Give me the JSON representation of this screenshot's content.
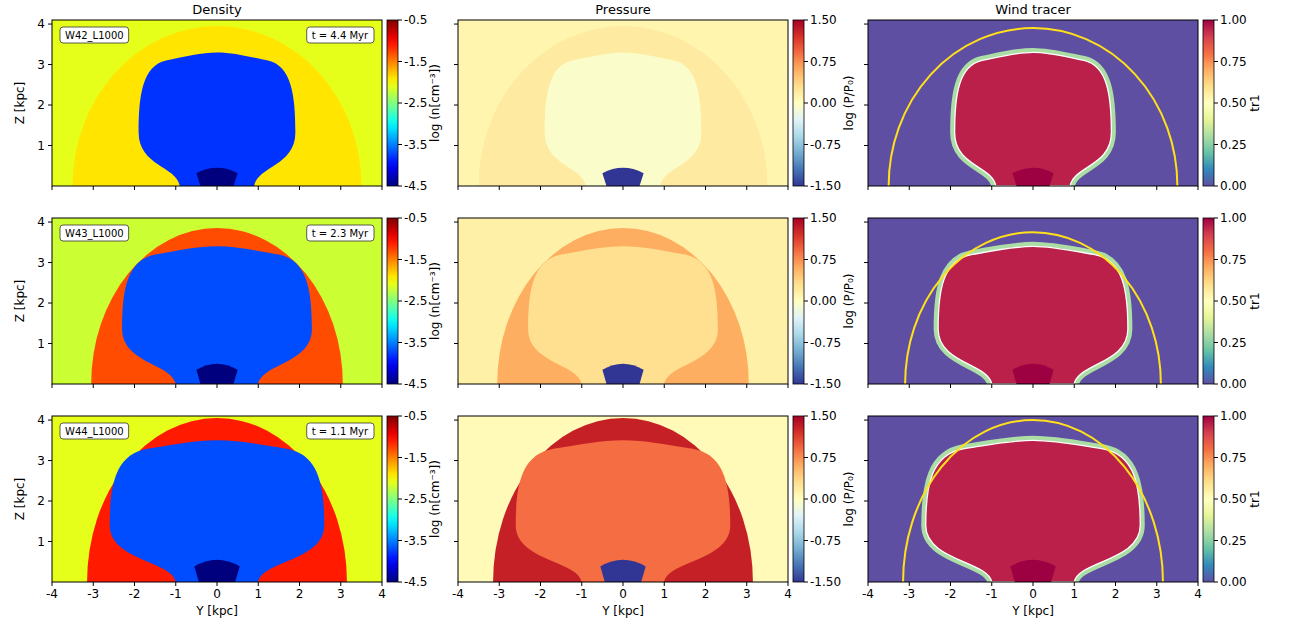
{
  "chart_data": [
    {
      "type": "heatmap",
      "title": "Density",
      "ylabel": "Z [kpc]",
      "run_label": "W42_L1000",
      "time_label": "t = 4.4 Myr",
      "xlim": [
        -4,
        4
      ],
      "ylim": [
        0,
        4.1
      ],
      "xticks": [
        -4,
        -3,
        -2,
        -1,
        0,
        1,
        2,
        3,
        4
      ],
      "yticks": [
        1,
        2,
        3,
        4
      ],
      "tick_labels": "y",
      "colorbar": {
        "label": "log (n[cm⁻³])",
        "range": [
          -4.5,
          -0.5
        ],
        "ticks": [
          -0.5,
          -1.5,
          -2.5,
          -3.5,
          -4.5
        ]
      },
      "background": -2.1,
      "shell": {
        "half_width": 3.5,
        "top": 3.95,
        "value": -1.9
      },
      "bubble": {
        "half_width": 1.9,
        "base_half_width": 0.9,
        "top": 3.3,
        "value": -3.8
      },
      "cavity": {
        "half_width": 0.5,
        "height": 0.45,
        "value": -4.5
      }
    },
    {
      "type": "heatmap",
      "title": "Pressure",
      "xlim": [
        -4,
        4
      ],
      "ylim": [
        0,
        4.1
      ],
      "xticks": [
        -4,
        -3,
        -2,
        -1,
        0,
        1,
        2,
        3,
        4
      ],
      "yticks": [
        1,
        2,
        3,
        4
      ],
      "tick_labels": false,
      "colorbar": {
        "label": "log (P/P₀)",
        "range": [
          -1.5,
          1.5
        ],
        "ticks": [
          {
            "value": 1.5,
            "label": "1.50"
          },
          {
            "value": 0.75,
            "label": "0.75"
          },
          {
            "value": 0,
            "label": "0.00"
          },
          {
            "value": -0.75,
            "label": "-0.75"
          },
          {
            "value": -1.5,
            "label": "-1.50"
          }
        ]
      },
      "background": 0.1,
      "shell": {
        "half_width": 3.5,
        "top": 3.95,
        "value": 0.2
      },
      "bubble": {
        "half_width": 1.9,
        "base_half_width": 0.9,
        "top": 3.3,
        "value": -0.05
      },
      "cavity": {
        "half_width": 0.5,
        "height": 0.45,
        "value": -1.5
      }
    },
    {
      "type": "heatmap",
      "title": "Wind tracer",
      "xlim": [
        -4,
        4
      ],
      "ylim": [
        0,
        4.1
      ],
      "xticks": [
        -4,
        -3,
        -2,
        -1,
        0,
        1,
        2,
        3,
        4
      ],
      "yticks": [
        1,
        2,
        3,
        4
      ],
      "tick_labels": false,
      "colorbar": {
        "label": "tr1",
        "range": [
          0,
          1
        ],
        "ticks": [
          {
            "value": 1,
            "label": "1.00"
          },
          {
            "value": 0.75,
            "label": "0.75"
          },
          {
            "value": 0.5,
            "label": "0.50"
          },
          {
            "value": 0.25,
            "label": "0.25"
          },
          {
            "value": 0,
            "label": "0.00"
          }
        ]
      },
      "background": 0,
      "bubble": {
        "half_width": 1.9,
        "base_half_width": 0.9,
        "top": 3.3,
        "value": 0.95,
        "edge_value": 0.3
      },
      "cavity": {
        "half_width": 0.5,
        "height": 0.45,
        "value": 1
      },
      "contour": {
        "half_width": 3.5,
        "top": 3.9
      }
    },
    {
      "type": "heatmap",
      "ylabel": "Z [kpc]",
      "run_label": "W43_L1000",
      "time_label": "t = 2.3 Myr",
      "xlim": [
        -4,
        4
      ],
      "ylim": [
        0,
        4.1
      ],
      "xticks": [
        -4,
        -3,
        -2,
        -1,
        0,
        1,
        2,
        3,
        4
      ],
      "yticks": [
        1,
        2,
        3,
        4
      ],
      "tick_labels": "y",
      "colorbar": {
        "label": "log (n[cm⁻³])",
        "range": [
          -4.5,
          -0.5
        ],
        "ticks": [
          -0.5,
          -1.5,
          -2.5,
          -3.5,
          -4.5
        ]
      },
      "background": -2.2,
      "shell": {
        "half_width": 3.05,
        "top": 3.85,
        "value": -1.3
      },
      "bubble": {
        "half_width": 2.3,
        "base_half_width": 1.0,
        "top": 3.4,
        "value": -3.7
      },
      "cavity": {
        "half_width": 0.5,
        "height": 0.5,
        "value": -4.5
      }
    },
    {
      "type": "heatmap",
      "xlim": [
        -4,
        4
      ],
      "ylim": [
        0,
        4.1
      ],
      "xticks": [
        -4,
        -3,
        -2,
        -1,
        0,
        1,
        2,
        3,
        4
      ],
      "yticks": [
        1,
        2,
        3,
        4
      ],
      "tick_labels": false,
      "colorbar": {
        "label": "log (P/P₀)",
        "range": [
          -1.5,
          1.5
        ],
        "ticks": [
          {
            "value": 1.5,
            "label": "1.50"
          },
          {
            "value": 0.75,
            "label": "0.75"
          },
          {
            "value": 0,
            "label": "0.00"
          },
          {
            "value": -0.75,
            "label": "-0.75"
          },
          {
            "value": -1.5,
            "label": "-1.50"
          }
        ]
      },
      "background": 0.15,
      "shell": {
        "half_width": 3.05,
        "top": 3.85,
        "value": 0.6
      },
      "bubble": {
        "half_width": 2.3,
        "base_half_width": 1.0,
        "top": 3.4,
        "value": 0.3
      },
      "cavity": {
        "half_width": 0.5,
        "height": 0.5,
        "value": -1.5
      }
    },
    {
      "type": "heatmap",
      "xlim": [
        -4,
        4
      ],
      "ylim": [
        0,
        4.1
      ],
      "xticks": [
        -4,
        -3,
        -2,
        -1,
        0,
        1,
        2,
        3,
        4
      ],
      "yticks": [
        1,
        2,
        3,
        4
      ],
      "tick_labels": false,
      "colorbar": {
        "label": "tr1",
        "range": [
          0,
          1
        ],
        "ticks": [
          {
            "value": 1,
            "label": "1.00"
          },
          {
            "value": 0.75,
            "label": "0.75"
          },
          {
            "value": 0.5,
            "label": "0.50"
          },
          {
            "value": 0.25,
            "label": "0.25"
          },
          {
            "value": 0,
            "label": "0.00"
          }
        ]
      },
      "background": 0,
      "bubble": {
        "half_width": 2.3,
        "base_half_width": 1.0,
        "top": 3.4,
        "value": 0.95,
        "edge_value": 0.3
      },
      "cavity": {
        "half_width": 0.5,
        "height": 0.5,
        "value": 1
      },
      "contour": {
        "half_width": 3.1,
        "top": 3.75
      }
    },
    {
      "type": "heatmap",
      "ylabel": "Z [kpc]",
      "xlabel": "Y [kpc]",
      "run_label": "W44_L1000",
      "time_label": "t = 1.1 Myr",
      "xlim": [
        -4,
        4
      ],
      "ylim": [
        0,
        4.1
      ],
      "xticks": [
        -4,
        -3,
        -2,
        -1,
        0,
        1,
        2,
        3,
        4
      ],
      "yticks": [
        1,
        2,
        3,
        4
      ],
      "tick_labels": true,
      "colorbar": {
        "label": "log (n[cm⁻³])",
        "range": [
          -4.5,
          -0.5
        ],
        "ticks": [
          -0.5,
          -1.5,
          -2.5,
          -3.5,
          -4.5
        ]
      },
      "background": -2.1,
      "shell": {
        "half_width": 3.15,
        "top": 4.05,
        "value": -1.1
      },
      "bubble": {
        "half_width": 2.6,
        "base_half_width": 1.0,
        "top": 3.5,
        "value": -3.7
      },
      "cavity": {
        "half_width": 0.55,
        "height": 0.55,
        "value": -4.5
      }
    },
    {
      "type": "heatmap",
      "xlabel": "Y [kpc]",
      "xlim": [
        -4,
        4
      ],
      "ylim": [
        0,
        4.1
      ],
      "xticks": [
        -4,
        -3,
        -2,
        -1,
        0,
        1,
        2,
        3,
        4
      ],
      "yticks": [
        1,
        2,
        3,
        4
      ],
      "tick_labels": "x",
      "colorbar": {
        "label": "log (P/P₀)",
        "range": [
          -1.5,
          1.5
        ],
        "ticks": [
          {
            "value": 1.5,
            "label": "1.50"
          },
          {
            "value": 0.75,
            "label": "0.75"
          },
          {
            "value": 0,
            "label": "0.00"
          },
          {
            "value": -0.75,
            "label": "-0.75"
          },
          {
            "value": -1.5,
            "label": "-1.50"
          }
        ]
      },
      "background": 0.05,
      "shell": {
        "half_width": 3.15,
        "top": 4.05,
        "value": 1.3
      },
      "bubble": {
        "half_width": 2.6,
        "base_half_width": 1.0,
        "top": 3.5,
        "value": 0.9
      },
      "cavity": {
        "half_width": 0.55,
        "height": 0.55,
        "value": -1.5
      }
    },
    {
      "type": "heatmap",
      "xlabel": "Y [kpc]",
      "xlim": [
        -4,
        4
      ],
      "ylim": [
        0,
        4.1
      ],
      "xticks": [
        -4,
        -3,
        -2,
        -1,
        0,
        1,
        2,
        3,
        4
      ],
      "yticks": [
        1,
        2,
        3,
        4
      ],
      "tick_labels": "x",
      "colorbar": {
        "label": "tr1",
        "range": [
          0,
          1
        ],
        "ticks": [
          {
            "value": 1,
            "label": "1.00"
          },
          {
            "value": 0.75,
            "label": "0.75"
          },
          {
            "value": 0.5,
            "label": "0.50"
          },
          {
            "value": 0.25,
            "label": "0.25"
          },
          {
            "value": 0,
            "label": "0.00"
          }
        ]
      },
      "background": 0,
      "bubble": {
        "half_width": 2.6,
        "base_half_width": 1.0,
        "top": 3.5,
        "value": 0.95,
        "edge_value": 0.3
      },
      "cavity": {
        "half_width": 0.55,
        "height": 0.55,
        "value": 1
      },
      "contour": {
        "half_width": 3.15,
        "top": 4.0
      }
    }
  ]
}
